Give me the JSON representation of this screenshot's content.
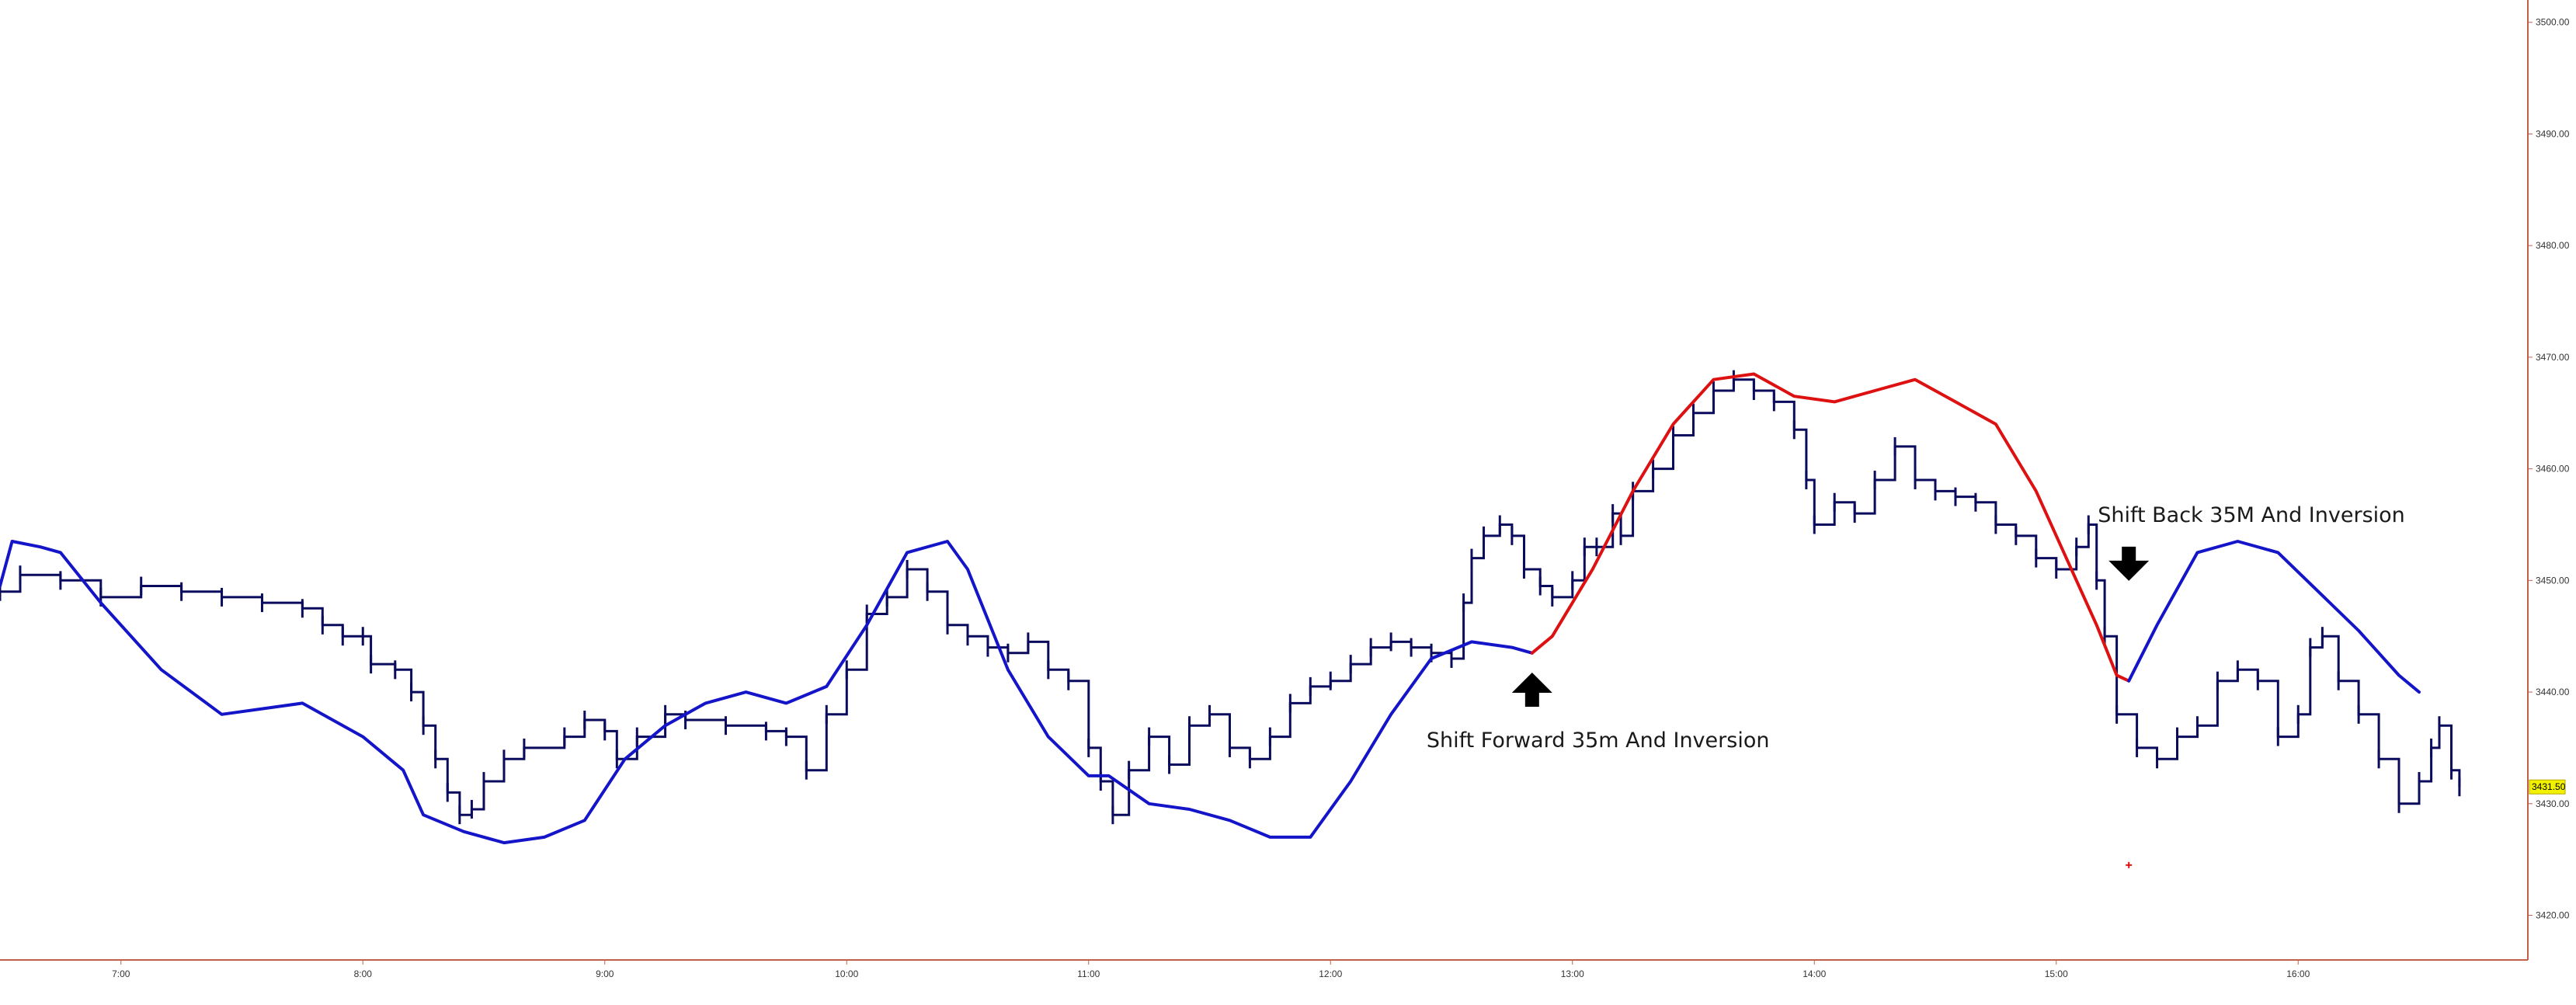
{
  "chart_data": {
    "type": "line",
    "title": "",
    "xlabel": "",
    "ylabel": "",
    "xlim": [
      "6:30",
      "16:30"
    ],
    "ylim": [
      3416,
      3502
    ],
    "grid": false,
    "legend": "none",
    "x_ticks": [
      "7:00",
      "8:00",
      "9:00",
      "10:00",
      "11:00",
      "12:00",
      "13:00",
      "14:00",
      "15:00",
      "16:00"
    ],
    "y_ticks": [
      "3420.00",
      "3430.00",
      "3440.00",
      "3450.00",
      "3460.00",
      "3470.00",
      "3480.00",
      "3490.00",
      "3500.00"
    ],
    "last_price_label": "3431.50",
    "last_price": 3431.5,
    "colors": {
      "price": "#0b0b5e",
      "blue_line": "#1414c8",
      "red_line": "#dd1111",
      "axis": "#c4604a",
      "price_tag_bg": "#f2f200",
      "arrow": "#000000"
    },
    "series": [
      {
        "kind": "price-bars",
        "color": "#0b0b5e",
        "points": [
          [
            "6:30",
            3449.0
          ],
          [
            "6:35",
            3450.5
          ],
          [
            "6:45",
            3450.0
          ],
          [
            "6:55",
            3448.5
          ],
          [
            "7:05",
            3449.5
          ],
          [
            "7:15",
            3449.0
          ],
          [
            "7:25",
            3448.5
          ],
          [
            "7:35",
            3448.0
          ],
          [
            "7:45",
            3447.5
          ],
          [
            "7:50",
            3446.0
          ],
          [
            "7:55",
            3445.0
          ],
          [
            "8:00",
            3445.0
          ],
          [
            "8:02",
            3442.5
          ],
          [
            "8:08",
            3442.0
          ],
          [
            "8:12",
            3440.0
          ],
          [
            "8:15",
            3437.0
          ],
          [
            "8:18",
            3434.0
          ],
          [
            "8:21",
            3431.0
          ],
          [
            "8:24",
            3429.0
          ],
          [
            "8:27",
            3429.5
          ],
          [
            "8:30",
            3432.0
          ],
          [
            "8:35",
            3434.0
          ],
          [
            "8:40",
            3435.0
          ],
          [
            "8:50",
            3436.0
          ],
          [
            "8:55",
            3437.5
          ],
          [
            "9:00",
            3436.5
          ],
          [
            "9:03",
            3434.0
          ],
          [
            "9:08",
            3436.0
          ],
          [
            "9:15",
            3438.0
          ],
          [
            "9:20",
            3437.5
          ],
          [
            "9:30",
            3437.0
          ],
          [
            "9:40",
            3436.5
          ],
          [
            "9:45",
            3436.0
          ],
          [
            "9:50",
            3433.0
          ],
          [
            "9:55",
            3438.0
          ],
          [
            "10:00",
            3442.0
          ],
          [
            "10:05",
            3447.0
          ],
          [
            "10:10",
            3448.5
          ],
          [
            "10:15",
            3451.0
          ],
          [
            "10:20",
            3449.0
          ],
          [
            "10:25",
            3446.0
          ],
          [
            "10:30",
            3445.0
          ],
          [
            "10:35",
            3444.0
          ],
          [
            "10:40",
            3443.5
          ],
          [
            "10:45",
            3444.5
          ],
          [
            "10:50",
            3442.0
          ],
          [
            "10:55",
            3441.0
          ],
          [
            "11:00",
            3435.0
          ],
          [
            "11:03",
            3432.0
          ],
          [
            "11:06",
            3429.0
          ],
          [
            "11:10",
            3433.0
          ],
          [
            "11:15",
            3436.0
          ],
          [
            "11:20",
            3433.5
          ],
          [
            "11:25",
            3437.0
          ],
          [
            "11:30",
            3438.0
          ],
          [
            "11:35",
            3435.0
          ],
          [
            "11:40",
            3434.0
          ],
          [
            "11:45",
            3436.0
          ],
          [
            "11:50",
            3439.0
          ],
          [
            "11:55",
            3440.5
          ],
          [
            "12:00",
            3441.0
          ],
          [
            "12:05",
            3442.5
          ],
          [
            "12:10",
            3444.0
          ],
          [
            "12:15",
            3444.5
          ],
          [
            "12:20",
            3444.0
          ],
          [
            "12:25",
            3443.5
          ],
          [
            "12:30",
            3443.0
          ],
          [
            "12:33",
            3448.0
          ],
          [
            "12:35",
            3452.0
          ],
          [
            "12:38",
            3454.0
          ],
          [
            "12:42",
            3455.0
          ],
          [
            "12:45",
            3454.0
          ],
          [
            "12:48",
            3451.0
          ],
          [
            "12:52",
            3449.5
          ],
          [
            "12:55",
            3448.5
          ],
          [
            "13:00",
            3450.0
          ],
          [
            "13:03",
            3453.0
          ],
          [
            "13:06",
            3453.0
          ],
          [
            "13:10",
            3456.0
          ],
          [
            "13:12",
            3454.0
          ],
          [
            "13:15",
            3458.0
          ],
          [
            "13:20",
            3460.0
          ],
          [
            "13:25",
            3463.0
          ],
          [
            "13:30",
            3465.0
          ],
          [
            "13:35",
            3467.0
          ],
          [
            "13:40",
            3468.0
          ],
          [
            "13:45",
            3467.0
          ],
          [
            "13:50",
            3466.0
          ],
          [
            "13:55",
            3463.5
          ],
          [
            "13:58",
            3459.0
          ],
          [
            "14:00",
            3455.0
          ],
          [
            "14:05",
            3457.0
          ],
          [
            "14:10",
            3456.0
          ],
          [
            "14:15",
            3459.0
          ],
          [
            "14:20",
            3462.0
          ],
          [
            "14:25",
            3459.0
          ],
          [
            "14:30",
            3458.0
          ],
          [
            "14:35",
            3457.5
          ],
          [
            "14:40",
            3457.0
          ],
          [
            "14:45",
            3455.0
          ],
          [
            "14:50",
            3454.0
          ],
          [
            "14:55",
            3452.0
          ],
          [
            "15:00",
            3451.0
          ],
          [
            "15:05",
            3453.0
          ],
          [
            "15:08",
            3455.0
          ],
          [
            "15:10",
            3450.0
          ],
          [
            "15:12",
            3445.0
          ],
          [
            "15:15",
            3438.0
          ],
          [
            "15:20",
            3435.0
          ],
          [
            "15:25",
            3434.0
          ],
          [
            "15:30",
            3436.0
          ],
          [
            "15:35",
            3437.0
          ],
          [
            "15:40",
            3441.0
          ],
          [
            "15:45",
            3442.0
          ],
          [
            "15:50",
            3441.0
          ],
          [
            "15:55",
            3436.0
          ],
          [
            "16:00",
            3438.0
          ],
          [
            "16:03",
            3444.0
          ],
          [
            "16:06",
            3445.0
          ],
          [
            "16:10",
            3441.0
          ],
          [
            "16:15",
            3438.0
          ],
          [
            "16:20",
            3434.0
          ],
          [
            "16:25",
            3430.0
          ],
          [
            "16:30",
            3432.0
          ],
          [
            "16:33",
            3435.0
          ],
          [
            "16:35",
            3437.0
          ],
          [
            "16:38",
            3433.0
          ],
          [
            "16:40",
            3431.5
          ]
        ]
      },
      {
        "kind": "line",
        "color": "#1414c8",
        "points": [
          [
            "6:30",
            3449.5
          ],
          [
            "6:33",
            3453.5
          ],
          [
            "6:40",
            3453.0
          ],
          [
            "6:45",
            3452.5
          ],
          [
            "6:55",
            3448.0
          ],
          [
            "7:10",
            3442.0
          ],
          [
            "7:25",
            3438.0
          ],
          [
            "7:45",
            3439.0
          ],
          [
            "8:00",
            3436.0
          ],
          [
            "8:10",
            3433.0
          ],
          [
            "8:15",
            3429.0
          ],
          [
            "8:25",
            3427.5
          ],
          [
            "8:35",
            3426.5
          ],
          [
            "8:45",
            3427.0
          ],
          [
            "8:55",
            3428.5
          ],
          [
            "9:05",
            3434.0
          ],
          [
            "9:15",
            3437.0
          ],
          [
            "9:25",
            3439.0
          ],
          [
            "9:35",
            3440.0
          ],
          [
            "9:45",
            3439.0
          ],
          [
            "9:55",
            3440.5
          ],
          [
            "10:05",
            3446.0
          ],
          [
            "10:15",
            3452.5
          ],
          [
            "10:25",
            3453.5
          ],
          [
            "10:30",
            3451.0
          ],
          [
            "10:40",
            3442.0
          ],
          [
            "10:50",
            3436.0
          ],
          [
            "11:00",
            3432.5
          ],
          [
            "11:05",
            3432.5
          ],
          [
            "11:15",
            3430.0
          ],
          [
            "11:25",
            3429.5
          ],
          [
            "11:35",
            3428.5
          ],
          [
            "11:45",
            3427.0
          ],
          [
            "11:55",
            3427.0
          ],
          [
            "12:05",
            3432.0
          ],
          [
            "12:15",
            3438.0
          ],
          [
            "12:25",
            3443.0
          ],
          [
            "12:35",
            3444.5
          ],
          [
            "12:45",
            3444.0
          ],
          [
            "12:50",
            3443.5
          ]
        ]
      },
      {
        "kind": "line",
        "color": "#dd1111",
        "points": [
          [
            "12:50",
            3443.5
          ],
          [
            "12:55",
            3445.0
          ],
          [
            "13:05",
            3451.0
          ],
          [
            "13:15",
            3458.0
          ],
          [
            "13:25",
            3464.0
          ],
          [
            "13:35",
            3468.0
          ],
          [
            "13:45",
            3468.5
          ],
          [
            "13:55",
            3466.5
          ],
          [
            "14:05",
            3466.0
          ],
          [
            "14:15",
            3467.0
          ],
          [
            "14:25",
            3468.0
          ],
          [
            "14:35",
            3466.0
          ],
          [
            "14:45",
            3464.0
          ],
          [
            "14:55",
            3458.0
          ],
          [
            "15:05",
            3450.0
          ],
          [
            "15:10",
            3446.0
          ],
          [
            "15:15",
            3441.5
          ],
          [
            "15:18",
            3441.0
          ]
        ]
      },
      {
        "kind": "line",
        "color": "#1414c8",
        "points": [
          [
            "15:18",
            3441.0
          ],
          [
            "15:25",
            3446.0
          ],
          [
            "15:35",
            3452.5
          ],
          [
            "15:45",
            3453.5
          ],
          [
            "15:55",
            3452.5
          ],
          [
            "16:05",
            3449.0
          ],
          [
            "16:15",
            3445.5
          ],
          [
            "16:25",
            3441.5
          ],
          [
            "16:30",
            3440.0
          ]
        ]
      }
    ],
    "annotations": [
      {
        "text": "Shift Forward 35m And Inversion",
        "arrow": "up",
        "at": [
          "12:50",
          3443.0
        ]
      },
      {
        "text": "Shift Back 35M And Inversion",
        "arrow": "down",
        "at": [
          "15:18",
          3454.0
        ]
      }
    ]
  }
}
